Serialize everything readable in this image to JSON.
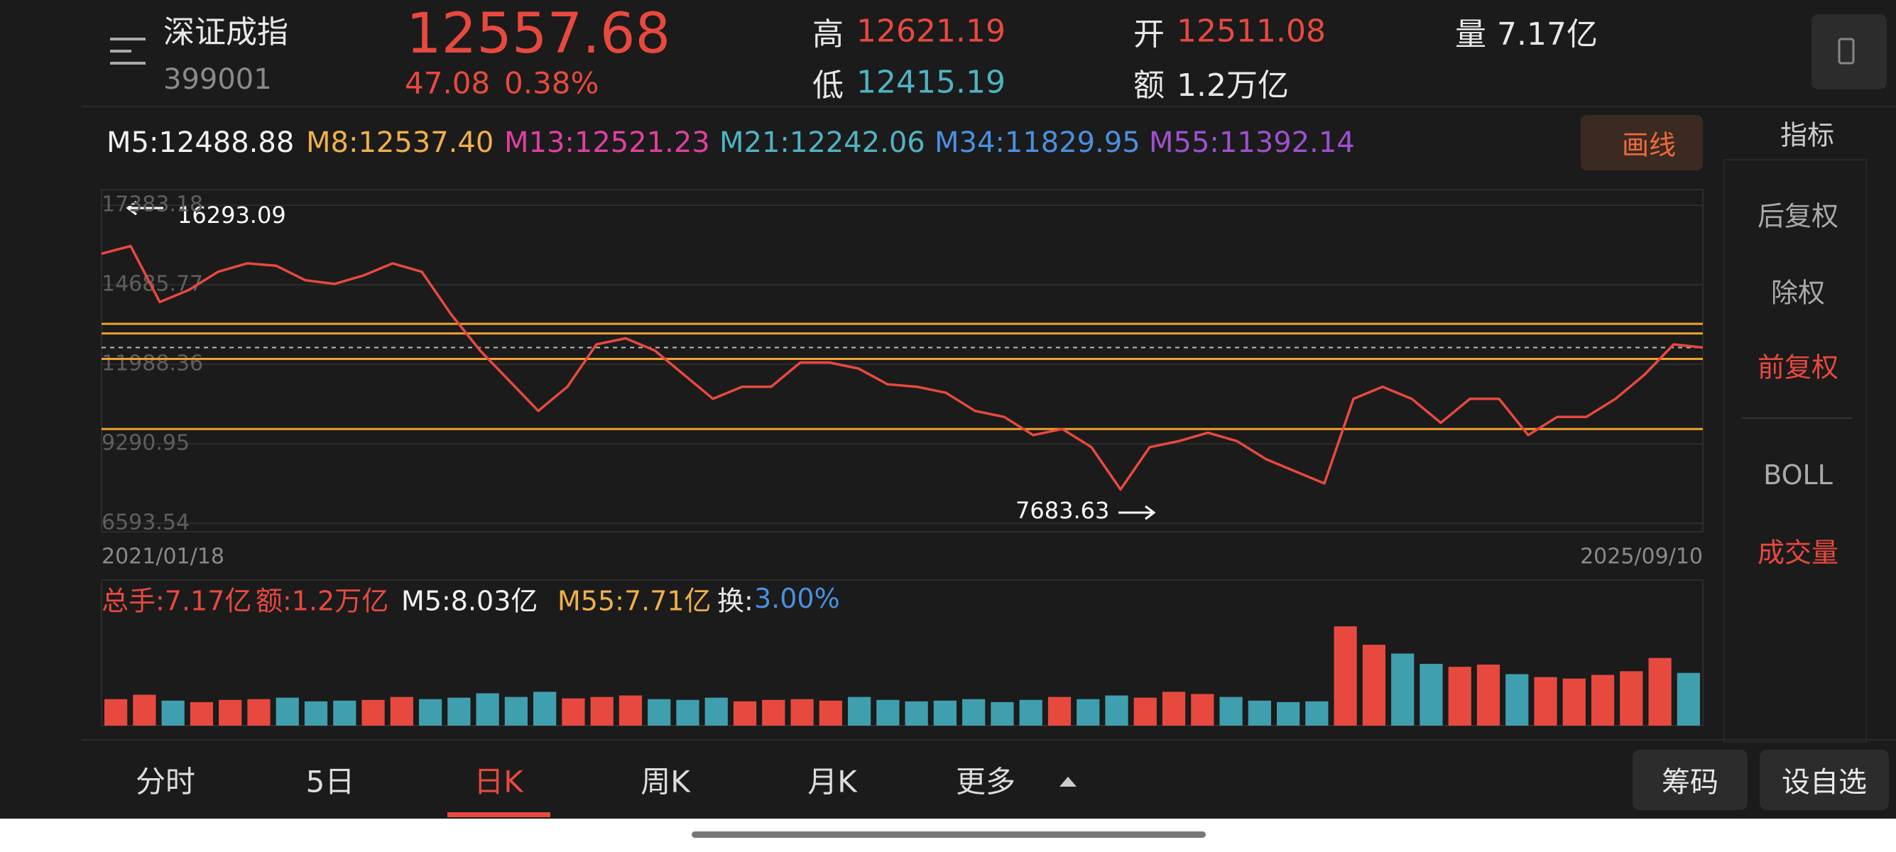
{
  "header": {
    "name": "深证成指",
    "code": "399001",
    "price": "12557.68",
    "change": "47.08",
    "change_pct": "0.38%",
    "high_label": "高",
    "high": "12621.19",
    "low_label": "低",
    "low": "12415.19",
    "open_label": "开",
    "open": "12511.08",
    "amount_label": "额",
    "amount": "1.2万亿",
    "volume_label": "量",
    "volume": "7.17亿"
  },
  "ma": [
    "M5:12488.88",
    "M8:12537.40",
    "M13:12521.23",
    "M21:12242.06",
    "M34:11829.95",
    "M55:11392.14"
  ],
  "draw_button": "画线",
  "indicator": "指标",
  "side": [
    "后复权",
    "除权",
    "前复权",
    "BOLL",
    "成交量"
  ],
  "volume_stats": [
    "总手:7.17亿",
    "额:1.2万亿",
    "M5:8.03亿",
    "M55:7.71亿"
  ],
  "turnover_label": "换:",
  "turnover": "3.00%",
  "tabs": [
    "分时",
    "5日",
    "日K",
    "周K",
    "月K",
    "更多"
  ],
  "buttons": [
    "筹码",
    "设自选"
  ],
  "chart_data": [
    {
      "type": "line",
      "color": "#e8493f",
      "values": [
        15742,
        16000,
        14100,
        14511,
        15126,
        15414,
        15332,
        14839,
        14716,
        15003,
        15414,
        15126,
        13690,
        12459,
        11434,
        10408,
        11228,
        12664,
        12870,
        12459,
        11639,
        10818,
        11228,
        11228,
        12049,
        12049,
        11844,
        11310,
        11228,
        11023,
        10408,
        10203,
        9587,
        9793,
        9177,
        7741,
        9177,
        9382,
        9669,
        9382,
        8767,
        8356,
        7946,
        10818,
        11228,
        10818,
        10003,
        10818,
        10818,
        9587,
        10203,
        10203,
        10818,
        11639,
        12664,
        12557.68
      ],
      "ylim": [
        6306,
        17916
      ],
      "yticks": [
        6593.54,
        9290.95,
        11988.36,
        14685.77,
        17383.18
      ],
      "hlines": [
        13362,
        13034,
        12172,
        9793
      ],
      "hline_color": "#f0a030",
      "annotations": [
        "16293.09",
        "7683.63"
      ],
      "xlabels": [
        "2021/01/18",
        "2025/09/10"
      ]
    },
    {
      "type": "bar",
      "values": [
        3.6,
        4.2,
        3.4,
        3.2,
        3.5,
        3.6,
        3.8,
        3.3,
        3.4,
        3.5,
        3.9,
        3.6,
        3.8,
        4.4,
        3.9,
        4.6,
        3.7,
        3.9,
        4.1,
        3.6,
        3.5,
        3.8,
        3.3,
        3.5,
        3.6,
        3.4,
        3.9,
        3.5,
        3.3,
        3.4,
        3.6,
        3.2,
        3.5,
        3.9,
        3.6,
        4.1,
        3.8,
        4.6,
        4.3,
        3.9,
        3.4,
        3.2,
        3.3,
        13.5,
        11.0,
        9.8,
        8.4,
        8.0,
        8.3,
        7.0,
        6.6,
        6.4,
        6.9,
        7.4,
        9.2,
        7.17
      ],
      "ylim": [
        0,
        14
      ]
    }
  ]
}
